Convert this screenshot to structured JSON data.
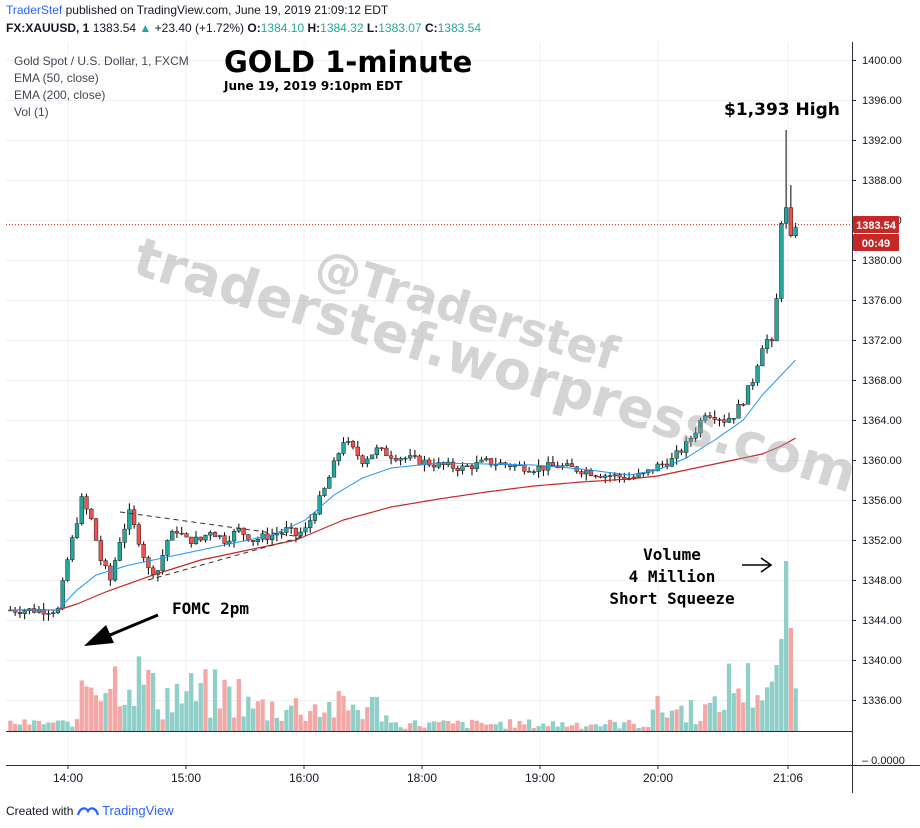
{
  "header": {
    "brand": "TraderStef",
    "published_text": "published on TradingView.com, June 19, 2019 21:09:12 EDT",
    "symbol": "FX:XAUUSD, 1",
    "last": "1383.54",
    "change": "+23.40 (+1.72%)",
    "o_label": "O:",
    "o_value": "1384.10",
    "h_label": "H:",
    "h_value": "1384.32",
    "l_label": "L:",
    "l_value": "1383.07",
    "c_label": "C:",
    "c_value": "1383.54"
  },
  "legend": {
    "line1": "Gold Spot / U.S. Dollar, 1, FXCM",
    "line2": "EMA (50, close)",
    "line3": "EMA (200, close)",
    "line4": "Vol (1)"
  },
  "title": "GOLD 1-minute",
  "subtitle": "June 19, 2019 9:10pm EDT",
  "annotations": {
    "high": "$1,393 High",
    "fomc": "FOMC 2pm",
    "volume_line1": "Volume",
    "volume_line2": "4 Million",
    "volume_line3": "Short Squeeze"
  },
  "watermark": "traderstef.worpress.com",
  "watermark2": "@Traderstef",
  "price_tag": "1383.54",
  "countdown_tag": "00:49",
  "footer": {
    "created_with": "Created with",
    "brand": "TradingView"
  },
  "colors": {
    "up": "#26a69a",
    "down": "#ef5350",
    "ema50": "#2196f3",
    "ema200": "#c62828",
    "vol_up": "#8fcfc8",
    "vol_down": "#f4a8a6",
    "price_tag_bg": "#c62828"
  },
  "chart_data": {
    "type": "candlestick",
    "y_ticks": [
      "1400.00",
      "1396.00",
      "1392.00",
      "1388.00",
      "1384.00",
      "1380.00",
      "1376.00",
      "1372.00",
      "1368.00",
      "1364.00",
      "1360.00",
      "1356.00",
      "1352.00",
      "1348.00",
      "1344.00",
      "1340.00",
      "1336.00"
    ],
    "vol_tick": "0.0000",
    "x_ticks": [
      "14:00",
      "15:00",
      "16:00",
      "18:00",
      "19:00",
      "20:00",
      "21:06"
    ],
    "ylim": [
      1331.5,
      1401.5
    ],
    "current_price": 1383.54,
    "high": 1393,
    "price_path": [
      [
        0,
        1345.0
      ],
      [
        5,
        1345.0
      ],
      [
        10,
        1345.0
      ],
      [
        12,
        1350
      ],
      [
        14,
        1354
      ],
      [
        15,
        1356
      ],
      [
        17,
        1354
      ],
      [
        19,
        1350
      ],
      [
        21,
        1348
      ],
      [
        23,
        1352
      ],
      [
        25,
        1354.6
      ],
      [
        27,
        1352
      ],
      [
        29,
        1349
      ],
      [
        31,
        1349
      ],
      [
        33,
        1352
      ],
      [
        35,
        1353
      ],
      [
        37,
        1352
      ],
      [
        40,
        1352
      ],
      [
        42,
        1353
      ],
      [
        45,
        1352
      ],
      [
        48,
        1353
      ],
      [
        51,
        1352
      ],
      [
        55,
        1352.5
      ],
      [
        58,
        1353
      ],
      [
        60,
        1352.5
      ],
      [
        62,
        1353
      ],
      [
        64,
        1355
      ],
      [
        66,
        1357
      ],
      [
        68,
        1359.5
      ],
      [
        70,
        1362
      ],
      [
        72,
        1361
      ],
      [
        74,
        1360
      ],
      [
        77,
        1361
      ],
      [
        80,
        1360.5
      ],
      [
        85,
        1360
      ],
      [
        90,
        1359.5
      ],
      [
        95,
        1359.2
      ],
      [
        100,
        1359.8
      ],
      [
        105,
        1359.5
      ],
      [
        110,
        1359.2
      ],
      [
        115,
        1359.4
      ],
      [
        120,
        1359.0
      ],
      [
        125,
        1358.5
      ],
      [
        130,
        1358.2
      ],
      [
        133,
        1358.5
      ],
      [
        136,
        1359.4
      ],
      [
        139,
        1360
      ],
      [
        142,
        1361.5
      ],
      [
        144,
        1363
      ],
      [
        146,
        1364.8
      ],
      [
        148,
        1364.5
      ],
      [
        150,
        1364
      ],
      [
        152,
        1364.5
      ],
      [
        154,
        1366
      ],
      [
        156,
        1368
      ],
      [
        158,
        1371.5
      ],
      [
        159,
        1372
      ],
      [
        160,
        1371.5
      ],
      [
        161,
        1376
      ],
      [
        162,
        1384
      ],
      [
        163,
        1385
      ],
      [
        164,
        1382
      ],
      [
        165,
        1383.54
      ]
    ],
    "high_spike_x": 163,
    "ema50": [
      [
        0,
        1345.0
      ],
      [
        10,
        1345.0
      ],
      [
        14,
        1347
      ],
      [
        18,
        1348.5
      ],
      [
        25,
        1349.5
      ],
      [
        35,
        1350.5
      ],
      [
        45,
        1351.5
      ],
      [
        55,
        1352.5
      ],
      [
        62,
        1354
      ],
      [
        68,
        1356.5
      ],
      [
        74,
        1358.2
      ],
      [
        80,
        1359.2
      ],
      [
        90,
        1359.7
      ],
      [
        100,
        1359.6
      ],
      [
        110,
        1359.5
      ],
      [
        120,
        1359.1
      ],
      [
        130,
        1358.5
      ],
      [
        136,
        1359
      ],
      [
        142,
        1360.2
      ],
      [
        148,
        1362
      ],
      [
        154,
        1364
      ],
      [
        158,
        1366.5
      ],
      [
        162,
        1368.5
      ],
      [
        165,
        1370
      ]
    ],
    "ema200": [
      [
        0,
        1345.0
      ],
      [
        10,
        1345.0
      ],
      [
        14,
        1345.6
      ],
      [
        20,
        1346.8
      ],
      [
        30,
        1348.5
      ],
      [
        40,
        1350
      ],
      [
        50,
        1351
      ],
      [
        60,
        1352
      ],
      [
        70,
        1354
      ],
      [
        80,
        1355.3
      ],
      [
        90,
        1356.1
      ],
      [
        100,
        1356.8
      ],
      [
        110,
        1357.4
      ],
      [
        120,
        1357.8
      ],
      [
        130,
        1358.1
      ],
      [
        136,
        1358.4
      ],
      [
        142,
        1359.0
      ],
      [
        148,
        1359.6
      ],
      [
        154,
        1360.2
      ],
      [
        158,
        1360.6
      ],
      [
        162,
        1361.4
      ],
      [
        165,
        1362.2
      ]
    ],
    "volume_spike": "4 Million"
  }
}
